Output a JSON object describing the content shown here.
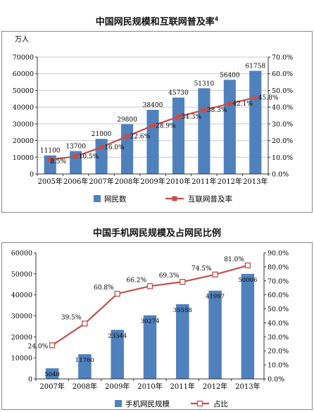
{
  "chart_data": [
    {
      "type": "bar",
      "title": "中国网民规模和互联网普及率",
      "title_note": "4",
      "y_unit": "万人",
      "categories": [
        "2005年",
        "2006年",
        "2007年",
        "2008年",
        "2009年",
        "2010年",
        "2011年",
        "2012年",
        "2013年"
      ],
      "y_ticks": [
        "0",
        "10000",
        "20000",
        "30000",
        "40000",
        "50000",
        "60000",
        "70000"
      ],
      "y2_ticks": [
        "0.0%",
        "10.0%",
        "20.0%",
        "30.0%",
        "40.0%",
        "50.0%",
        "60.0%",
        "70.0%"
      ],
      "ylim": [
        0,
        70000
      ],
      "y2lim": [
        0,
        70
      ],
      "grid": true,
      "legend_position": "bottom",
      "series": [
        {
          "name": "网民数",
          "kind": "bar",
          "color": "#4f81bd",
          "values": [
            11100,
            13700,
            21000,
            29800,
            38400,
            45730,
            51310,
            56400,
            61758
          ],
          "labels": [
            "11100",
            "13700",
            "21000",
            "29800",
            "38400",
            "45730",
            "51310",
            "56400",
            "61758"
          ]
        },
        {
          "name": "互联网普及率",
          "kind": "line",
          "color": "#c0504d",
          "marker": "square-filled",
          "values": [
            8.5,
            10.5,
            16.0,
            22.6,
            28.9,
            34.3,
            38.3,
            42.1,
            45.8
          ],
          "labels": [
            "8.5%",
            "10.5%",
            "16.0%",
            "22.6%",
            "28.9%",
            "34.3%",
            "38.3%",
            "42.1%",
            "45.8%"
          ]
        }
      ]
    },
    {
      "type": "bar",
      "title": "中国手机网民规模及占网民比例",
      "categories": [
        "2007年",
        "2008年",
        "2009年",
        "2010年",
        "2011年",
        "2012年",
        "2013年"
      ],
      "y_ticks": [
        "0",
        "10000",
        "20000",
        "30000",
        "40000",
        "50000",
        "60000"
      ],
      "y2_ticks": [
        "0.0%",
        "10.0%",
        "20.0%",
        "30.0%",
        "40.0%",
        "50.0%",
        "60.0%",
        "70.0%",
        "80.0%",
        "90.0%"
      ],
      "ylim": [
        0,
        60000
      ],
      "y2lim": [
        0,
        90
      ],
      "grid": false,
      "legend_position": "bottom",
      "series": [
        {
          "name": "手机网民规模",
          "kind": "bar",
          "color": "#4f81bd",
          "values": [
            5040,
            11760,
            23344,
            30274,
            35558,
            41997,
            50006
          ],
          "labels": [
            "5040",
            "11760",
            "23344",
            "30274",
            "35558",
            "41997",
            "50006"
          ]
        },
        {
          "name": "占比",
          "kind": "line",
          "color": "#c0504d",
          "marker": "square-open",
          "values": [
            24.0,
            39.5,
            60.8,
            66.2,
            69.3,
            74.5,
            81.0
          ],
          "labels": [
            "24.0%",
            "39.5%",
            "60.8%",
            "66.2%",
            "69.3%",
            "74.5%",
            "81.0%"
          ]
        }
      ]
    }
  ]
}
